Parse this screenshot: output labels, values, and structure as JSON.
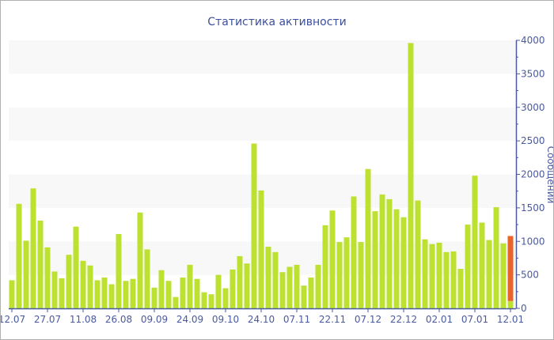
{
  "chart_data": {
    "type": "bar",
    "title": "Статистика активности",
    "xlabel": "",
    "ylabel": "Сообщений",
    "ylim": [
      0,
      4000
    ],
    "yticks": [
      0,
      500,
      1000,
      1500,
      2000,
      2500,
      3000,
      3500,
      4000
    ],
    "y_axis_side": "right",
    "grid": "alternating horizontal bands",
    "colors": {
      "bar": "#bde130",
      "highlight": "#e8642a",
      "axis": "#4a5aa0",
      "band": "#f8f8f8",
      "title": "#3d4f9c"
    },
    "xtick_labels": [
      {
        "index": 0,
        "label": "12.07"
      },
      {
        "index": 5,
        "label": "27.07"
      },
      {
        "index": 10,
        "label": "11.08"
      },
      {
        "index": 15,
        "label": "26.08"
      },
      {
        "index": 20,
        "label": "09.09"
      },
      {
        "index": 25,
        "label": "24.09"
      },
      {
        "index": 30,
        "label": "09.10"
      },
      {
        "index": 35,
        "label": "24.10"
      },
      {
        "index": 40,
        "label": "07.11"
      },
      {
        "index": 45,
        "label": "22.11"
      },
      {
        "index": 50,
        "label": "07.12"
      },
      {
        "index": 55,
        "label": "22.12"
      },
      {
        "index": 60,
        "label": "02.01"
      },
      {
        "index": 65,
        "label": "07.01"
      },
      {
        "index": 70,
        "label": "12.01"
      }
    ],
    "values": [
      420,
      1560,
      1010,
      1790,
      1310,
      910,
      550,
      450,
      800,
      1220,
      710,
      640,
      420,
      460,
      360,
      1110,
      410,
      440,
      1430,
      880,
      310,
      570,
      410,
      170,
      460,
      650,
      440,
      240,
      210,
      500,
      300,
      580,
      780,
      670,
      2460,
      1760,
      920,
      840,
      540,
      620,
      650,
      340,
      460,
      650,
      1240,
      1460,
      990,
      1060,
      1670,
      990,
      2080,
      1450,
      1700,
      1630,
      1480,
      1360,
      3960,
      1610,
      1030,
      960,
      980,
      840,
      850,
      590,
      1250,
      1980,
      1280,
      1020,
      1510,
      970,
      110
    ],
    "highlight_stack": {
      "index": 70,
      "value": 970
    }
  }
}
